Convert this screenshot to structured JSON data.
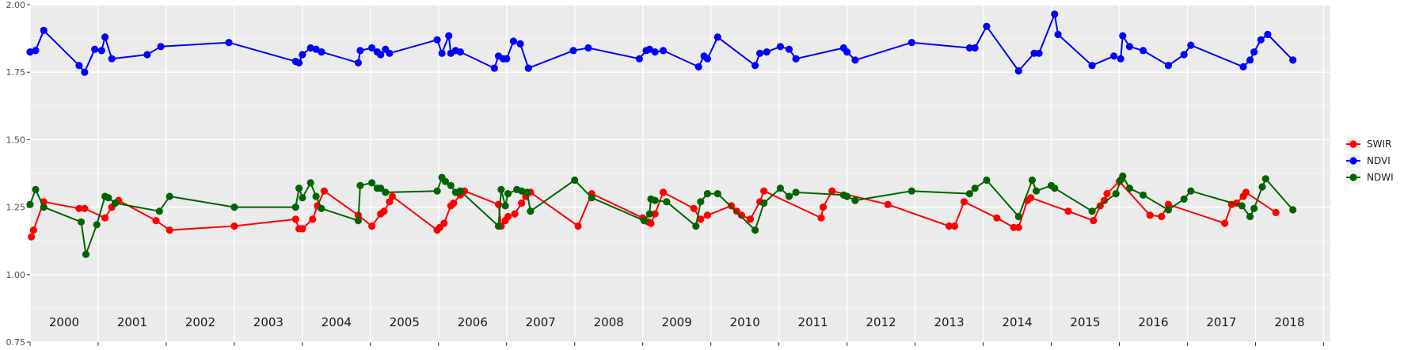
{
  "chart_data": {
    "type": "line",
    "title": "",
    "xlabel": "",
    "ylabel": "",
    "ylim": [
      0.75,
      2.0
    ],
    "xlim": [
      2000.0,
      2019.1
    ],
    "y_ticks": [
      "0.75",
      "1.00",
      "1.25",
      "1.50",
      "1.75",
      "2.00"
    ],
    "year_labels": [
      "2000",
      "2001",
      "2002",
      "2003",
      "2004",
      "2005",
      "2006",
      "2007",
      "2008",
      "2009",
      "2010",
      "2011",
      "2012",
      "2013",
      "2014",
      "2015",
      "2016",
      "2017",
      "2018"
    ],
    "grid": true,
    "legend_position": "right",
    "colors": {
      "SWIR": "#ff0000",
      "NDVI": "#0000ff",
      "NDWI": "#006400"
    },
    "series": [
      {
        "name": "SWIR",
        "color": "#ff0000",
        "points": [
          [
            2000.02,
            1.14
          ],
          [
            2000.05,
            1.165
          ],
          [
            2000.2,
            1.27
          ],
          [
            2000.72,
            1.245
          ],
          [
            2000.8,
            1.245
          ],
          [
            2001.1,
            1.21
          ],
          [
            2001.2,
            1.25
          ],
          [
            2001.3,
            1.275
          ],
          [
            2001.85,
            1.2
          ],
          [
            2002.05,
            1.165
          ],
          [
            2003.0,
            1.18
          ],
          [
            2003.9,
            1.205
          ],
          [
            2003.95,
            1.17
          ],
          [
            2004.0,
            1.17
          ],
          [
            2004.15,
            1.205
          ],
          [
            2004.22,
            1.255
          ],
          [
            2004.32,
            1.31
          ],
          [
            2004.82,
            1.22
          ],
          [
            2005.02,
            1.18
          ],
          [
            2005.15,
            1.225
          ],
          [
            2005.2,
            1.235
          ],
          [
            2005.28,
            1.27
          ],
          [
            2005.32,
            1.29
          ],
          [
            2005.98,
            1.165
          ],
          [
            2006.02,
            1.175
          ],
          [
            2006.08,
            1.19
          ],
          [
            2006.18,
            1.255
          ],
          [
            2006.22,
            1.265
          ],
          [
            2006.32,
            1.295
          ],
          [
            2006.38,
            1.31
          ],
          [
            2006.88,
            1.26
          ],
          [
            2006.92,
            1.18
          ],
          [
            2006.98,
            1.2
          ],
          [
            2007.02,
            1.215
          ],
          [
            2007.12,
            1.225
          ],
          [
            2007.22,
            1.265
          ],
          [
            2007.28,
            1.29
          ],
          [
            2007.35,
            1.305
          ],
          [
            2008.05,
            1.18
          ],
          [
            2008.25,
            1.3
          ],
          [
            2009.0,
            1.21
          ],
          [
            2009.08,
            1.195
          ],
          [
            2009.12,
            1.19
          ],
          [
            2009.18,
            1.225
          ],
          [
            2009.3,
            1.305
          ],
          [
            2009.75,
            1.245
          ],
          [
            2009.85,
            1.205
          ],
          [
            2009.95,
            1.22
          ],
          [
            2010.3,
            1.255
          ],
          [
            2010.38,
            1.235
          ],
          [
            2010.45,
            1.22
          ],
          [
            2010.58,
            1.205
          ],
          [
            2010.72,
            1.27
          ],
          [
            2010.78,
            1.31
          ],
          [
            2011.62,
            1.21
          ],
          [
            2011.65,
            1.25
          ],
          [
            2011.78,
            1.31
          ],
          [
            2012.6,
            1.26
          ],
          [
            2013.5,
            1.18
          ],
          [
            2013.58,
            1.18
          ],
          [
            2013.72,
            1.27
          ],
          [
            2014.2,
            1.21
          ],
          [
            2014.45,
            1.175
          ],
          [
            2014.52,
            1.175
          ],
          [
            2014.65,
            1.275
          ],
          [
            2014.7,
            1.285
          ],
          [
            2015.25,
            1.235
          ],
          [
            2015.62,
            1.2
          ],
          [
            2015.72,
            1.255
          ],
          [
            2015.78,
            1.275
          ],
          [
            2015.82,
            1.3
          ],
          [
            2016.0,
            1.345
          ],
          [
            2016.45,
            1.22
          ],
          [
            2016.62,
            1.215
          ],
          [
            2016.72,
            1.26
          ],
          [
            2017.55,
            1.19
          ],
          [
            2017.65,
            1.26
          ],
          [
            2017.72,
            1.265
          ],
          [
            2017.82,
            1.29
          ],
          [
            2017.86,
            1.305
          ],
          [
            2018.3,
            1.23
          ]
        ]
      },
      {
        "name": "NDVI",
        "color": "#0000ff",
        "points": [
          [
            2000.0,
            1.825
          ],
          [
            2000.08,
            1.83
          ],
          [
            2000.2,
            1.905
          ],
          [
            2000.72,
            1.775
          ],
          [
            2000.8,
            1.75
          ],
          [
            2000.95,
            1.835
          ],
          [
            2001.05,
            1.83
          ],
          [
            2001.1,
            1.88
          ],
          [
            2001.2,
            1.8
          ],
          [
            2001.72,
            1.815
          ],
          [
            2001.92,
            1.845
          ],
          [
            2002.92,
            1.86
          ],
          [
            2003.9,
            1.79
          ],
          [
            2003.95,
            1.785
          ],
          [
            2004.0,
            1.815
          ],
          [
            2004.12,
            1.84
          ],
          [
            2004.2,
            1.835
          ],
          [
            2004.28,
            1.825
          ],
          [
            2004.82,
            1.785
          ],
          [
            2004.85,
            1.83
          ],
          [
            2005.02,
            1.84
          ],
          [
            2005.1,
            1.825
          ],
          [
            2005.15,
            1.815
          ],
          [
            2005.22,
            1.835
          ],
          [
            2005.28,
            1.82
          ],
          [
            2005.98,
            1.87
          ],
          [
            2006.05,
            1.82
          ],
          [
            2006.15,
            1.885
          ],
          [
            2006.18,
            1.82
          ],
          [
            2006.25,
            1.83
          ],
          [
            2006.32,
            1.825
          ],
          [
            2006.82,
            1.765
          ],
          [
            2006.88,
            1.81
          ],
          [
            2006.95,
            1.8
          ],
          [
            2007.0,
            1.8
          ],
          [
            2007.1,
            1.865
          ],
          [
            2007.2,
            1.855
          ],
          [
            2007.32,
            1.765
          ],
          [
            2007.98,
            1.83
          ],
          [
            2008.2,
            1.84
          ],
          [
            2008.95,
            1.8
          ],
          [
            2009.05,
            1.83
          ],
          [
            2009.1,
            1.835
          ],
          [
            2009.18,
            1.825
          ],
          [
            2009.3,
            1.83
          ],
          [
            2009.82,
            1.77
          ],
          [
            2009.9,
            1.81
          ],
          [
            2009.95,
            1.8
          ],
          [
            2010.1,
            1.88
          ],
          [
            2010.65,
            1.775
          ],
          [
            2010.72,
            1.82
          ],
          [
            2010.82,
            1.825
          ],
          [
            2011.02,
            1.845
          ],
          [
            2011.15,
            1.835
          ],
          [
            2011.25,
            1.8
          ],
          [
            2011.95,
            1.84
          ],
          [
            2012.0,
            1.825
          ],
          [
            2012.12,
            1.795
          ],
          [
            2012.95,
            1.86
          ],
          [
            2013.8,
            1.84
          ],
          [
            2013.88,
            1.84
          ],
          [
            2014.05,
            1.92
          ],
          [
            2014.52,
            1.755
          ],
          [
            2014.75,
            1.82
          ],
          [
            2014.82,
            1.82
          ],
          [
            2015.05,
            1.965
          ],
          [
            2015.1,
            1.89
          ],
          [
            2015.6,
            1.775
          ],
          [
            2015.92,
            1.81
          ],
          [
            2016.02,
            1.8
          ],
          [
            2016.05,
            1.885
          ],
          [
            2016.15,
            1.845
          ],
          [
            2016.35,
            1.83
          ],
          [
            2016.72,
            1.775
          ],
          [
            2016.95,
            1.815
          ],
          [
            2017.05,
            1.85
          ],
          [
            2017.82,
            1.77
          ],
          [
            2017.92,
            1.795
          ],
          [
            2017.98,
            1.825
          ],
          [
            2018.08,
            1.87
          ],
          [
            2018.18,
            1.89
          ],
          [
            2018.55,
            1.795
          ]
        ]
      },
      {
        "name": "NDWI",
        "color": "#006400",
        "points": [
          [
            2000.0,
            1.26
          ],
          [
            2000.08,
            1.315
          ],
          [
            2000.2,
            1.25
          ],
          [
            2000.75,
            1.195
          ],
          [
            2000.82,
            1.075
          ],
          [
            2000.98,
            1.185
          ],
          [
            2001.1,
            1.29
          ],
          [
            2001.15,
            1.285
          ],
          [
            2001.25,
            1.265
          ],
          [
            2001.9,
            1.235
          ],
          [
            2002.05,
            1.29
          ],
          [
            2003.0,
            1.25
          ],
          [
            2003.9,
            1.25
          ],
          [
            2003.95,
            1.32
          ],
          [
            2004.0,
            1.285
          ],
          [
            2004.12,
            1.34
          ],
          [
            2004.2,
            1.29
          ],
          [
            2004.28,
            1.245
          ],
          [
            2004.82,
            1.2
          ],
          [
            2004.85,
            1.33
          ],
          [
            2005.02,
            1.34
          ],
          [
            2005.1,
            1.32
          ],
          [
            2005.15,
            1.32
          ],
          [
            2005.22,
            1.305
          ],
          [
            2005.98,
            1.31
          ],
          [
            2006.05,
            1.36
          ],
          [
            2006.1,
            1.345
          ],
          [
            2006.18,
            1.33
          ],
          [
            2006.25,
            1.305
          ],
          [
            2006.32,
            1.31
          ],
          [
            2006.88,
            1.18
          ],
          [
            2006.92,
            1.315
          ],
          [
            2006.98,
            1.255
          ],
          [
            2007.02,
            1.3
          ],
          [
            2007.15,
            1.315
          ],
          [
            2007.22,
            1.31
          ],
          [
            2007.3,
            1.305
          ],
          [
            2007.35,
            1.235
          ],
          [
            2008.0,
            1.35
          ],
          [
            2008.25,
            1.285
          ],
          [
            2009.02,
            1.2
          ],
          [
            2009.1,
            1.225
          ],
          [
            2009.12,
            1.28
          ],
          [
            2009.18,
            1.275
          ],
          [
            2009.35,
            1.27
          ],
          [
            2009.78,
            1.18
          ],
          [
            2009.85,
            1.27
          ],
          [
            2009.95,
            1.3
          ],
          [
            2010.1,
            1.3
          ],
          [
            2010.65,
            1.165
          ],
          [
            2010.78,
            1.265
          ],
          [
            2011.02,
            1.32
          ],
          [
            2011.15,
            1.29
          ],
          [
            2011.25,
            1.305
          ],
          [
            2011.95,
            1.295
          ],
          [
            2012.0,
            1.29
          ],
          [
            2012.12,
            1.275
          ],
          [
            2012.95,
            1.31
          ],
          [
            2013.8,
            1.3
          ],
          [
            2013.88,
            1.32
          ],
          [
            2014.05,
            1.35
          ],
          [
            2014.52,
            1.215
          ],
          [
            2014.72,
            1.35
          ],
          [
            2014.78,
            1.31
          ],
          [
            2015.0,
            1.33
          ],
          [
            2015.05,
            1.32
          ],
          [
            2015.6,
            1.235
          ],
          [
            2015.95,
            1.3
          ],
          [
            2016.02,
            1.35
          ],
          [
            2016.05,
            1.365
          ],
          [
            2016.15,
            1.32
          ],
          [
            2016.35,
            1.295
          ],
          [
            2016.72,
            1.24
          ],
          [
            2016.95,
            1.28
          ],
          [
            2017.05,
            1.31
          ],
          [
            2017.8,
            1.255
          ],
          [
            2017.92,
            1.215
          ],
          [
            2017.98,
            1.245
          ],
          [
            2018.1,
            1.325
          ],
          [
            2018.15,
            1.355
          ],
          [
            2018.55,
            1.24
          ]
        ]
      }
    ]
  }
}
